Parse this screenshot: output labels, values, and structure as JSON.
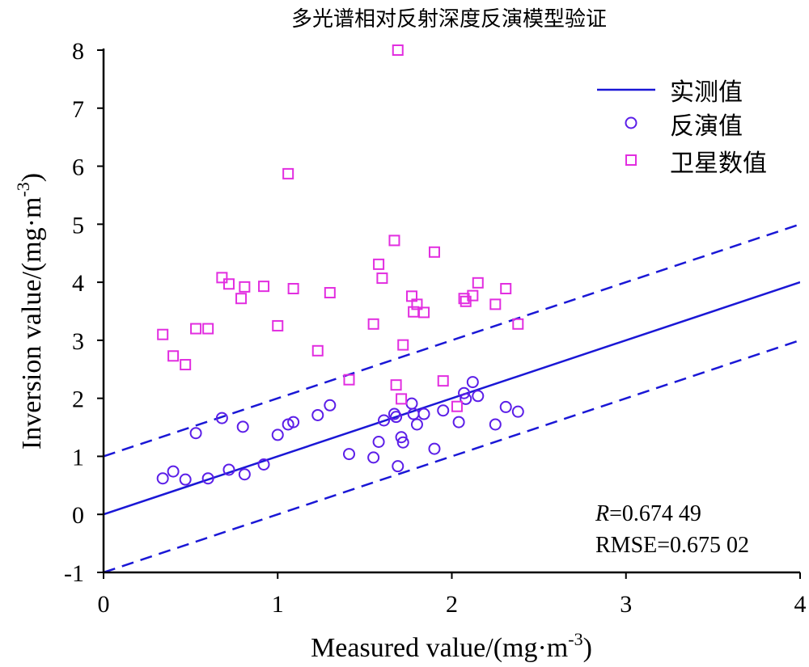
{
  "chart_data": {
    "type": "scatter",
    "title": "多光谱相对反射深度反演模型验证",
    "xlabel": "Measured value/(mg·m",
    "xlabel_sup": "-3",
    "xlabel_end": ")",
    "ylabel": "Inversion value/(mg·m",
    "ylabel_sup": "-3",
    "ylabel_end": ")",
    "xlim": [
      0,
      4
    ],
    "ylim": [
      -1,
      8
    ],
    "xticks": [
      "0",
      "1",
      "2",
      "3",
      "4"
    ],
    "yticks": [
      "-1",
      "0",
      "1",
      "2",
      "3",
      "4",
      "5",
      "6",
      "7",
      "8"
    ],
    "xtick_values": [
      0,
      1,
      2,
      3,
      4
    ],
    "ytick_values": [
      -1,
      0,
      1,
      2,
      3,
      4,
      5,
      6,
      7,
      8
    ],
    "legend_position": "top-right",
    "legend": [
      {
        "label": "实测值",
        "marker": "line"
      },
      {
        "label": "反演值",
        "marker": "circle"
      },
      {
        "label": "卫星数值",
        "marker": "square"
      }
    ],
    "reference_lines": [
      {
        "name": "实测值",
        "intercept": 0,
        "style": "solid"
      },
      {
        "name": "+1",
        "intercept": 1,
        "style": "dashed"
      },
      {
        "name": "-1",
        "intercept": -1,
        "style": "dashed"
      }
    ],
    "stats": {
      "r_label": "R",
      "r_value": "=0.674 49",
      "rmse": "RMSE=0.675 02"
    },
    "colors": {
      "line": "#1a17d6",
      "circle": "#5b1ee8",
      "square": "#e22ee0"
    },
    "series": [
      {
        "name": "反演值",
        "marker": "circle",
        "points": [
          [
            0.34,
            0.62
          ],
          [
            0.4,
            0.74
          ],
          [
            0.47,
            0.6
          ],
          [
            0.53,
            1.4
          ],
          [
            0.6,
            0.62
          ],
          [
            0.68,
            1.66
          ],
          [
            0.72,
            0.77
          ],
          [
            0.8,
            1.51
          ],
          [
            0.81,
            0.69
          ],
          [
            0.92,
            0.86
          ],
          [
            1.0,
            1.37
          ],
          [
            1.06,
            1.55
          ],
          [
            1.09,
            1.59
          ],
          [
            1.23,
            1.71
          ],
          [
            1.3,
            1.88
          ],
          [
            1.41,
            1.04
          ],
          [
            1.55,
            0.98
          ],
          [
            1.58,
            1.25
          ],
          [
            1.61,
            1.62
          ],
          [
            1.67,
            1.73
          ],
          [
            1.68,
            1.68
          ],
          [
            1.69,
            0.83
          ],
          [
            1.71,
            1.33
          ],
          [
            1.72,
            1.24
          ],
          [
            1.77,
            1.91
          ],
          [
            1.78,
            1.73
          ],
          [
            1.8,
            1.55
          ],
          [
            1.84,
            1.73
          ],
          [
            1.9,
            1.13
          ],
          [
            1.95,
            1.79
          ],
          [
            2.04,
            1.59
          ],
          [
            2.07,
            2.09
          ],
          [
            2.08,
            1.99
          ],
          [
            2.12,
            2.28
          ],
          [
            2.15,
            2.04
          ],
          [
            2.25,
            1.55
          ],
          [
            2.31,
            1.85
          ],
          [
            2.38,
            1.77
          ]
        ]
      },
      {
        "name": "卫星数值",
        "marker": "square",
        "points": [
          [
            0.34,
            3.1
          ],
          [
            0.4,
            2.73
          ],
          [
            0.47,
            2.58
          ],
          [
            0.53,
            3.2
          ],
          [
            0.6,
            3.2
          ],
          [
            0.68,
            4.08
          ],
          [
            0.72,
            3.97
          ],
          [
            0.79,
            3.72
          ],
          [
            0.81,
            3.92
          ],
          [
            0.92,
            3.93
          ],
          [
            1.0,
            3.25
          ],
          [
            1.06,
            5.87
          ],
          [
            1.09,
            3.89
          ],
          [
            1.23,
            2.82
          ],
          [
            1.3,
            3.82
          ],
          [
            1.41,
            2.32
          ],
          [
            1.55,
            3.28
          ],
          [
            1.58,
            4.31
          ],
          [
            1.6,
            4.07
          ],
          [
            1.67,
            4.72
          ],
          [
            1.68,
            2.23
          ],
          [
            1.69,
            8.0
          ],
          [
            1.71,
            1.99
          ],
          [
            1.72,
            2.92
          ],
          [
            1.77,
            3.76
          ],
          [
            1.78,
            3.49
          ],
          [
            1.8,
            3.62
          ],
          [
            1.84,
            3.48
          ],
          [
            1.9,
            4.52
          ],
          [
            1.95,
            2.3
          ],
          [
            2.03,
            1.86
          ],
          [
            2.07,
            3.72
          ],
          [
            2.08,
            3.67
          ],
          [
            2.12,
            3.77
          ],
          [
            2.15,
            3.99
          ],
          [
            2.25,
            3.62
          ],
          [
            2.31,
            3.89
          ],
          [
            2.38,
            3.28
          ]
        ]
      }
    ]
  }
}
